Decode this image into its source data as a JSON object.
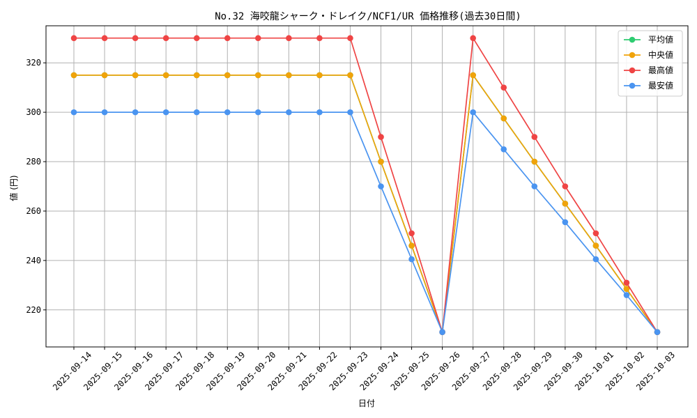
{
  "chart_data": {
    "type": "line",
    "title": "No.32 海咬龍シャーク・ドレイク/NCF1/UR 価格推移(過去30日間)",
    "xlabel": "日付",
    "ylabel": "値 (円)",
    "ylim": [
      205,
      335
    ],
    "yticks": [
      220,
      240,
      260,
      280,
      300,
      320
    ],
    "grid": true,
    "legend_position": "top-right",
    "categories": [
      "2025-09-14",
      "2025-09-15",
      "2025-09-16",
      "2025-09-17",
      "2025-09-18",
      "2025-09-19",
      "2025-09-20",
      "2025-09-21",
      "2025-09-22",
      "2025-09-23",
      "2025-09-24",
      "2025-09-25",
      "2025-09-26",
      "2025-09-27",
      "2025-09-28",
      "2025-09-29",
      "2025-09-30",
      "2025-10-01",
      "2025-10-02",
      "2025-10-03"
    ],
    "series": [
      {
        "name": "平均値",
        "color": "#2ecc71",
        "values": [
          315,
          315,
          315,
          315,
          315,
          315,
          315,
          315,
          315,
          315,
          280,
          246,
          211,
          315,
          297.5,
          280,
          263,
          246,
          228.5,
          211
        ]
      },
      {
        "name": "中央値",
        "color": "#f0a30a",
        "values": [
          315,
          315,
          315,
          315,
          315,
          315,
          315,
          315,
          315,
          315,
          280,
          246,
          211,
          315,
          297.5,
          280,
          263,
          246,
          228.5,
          211
        ]
      },
      {
        "name": "最高値",
        "color": "#ef4444",
        "values": [
          330,
          330,
          330,
          330,
          330,
          330,
          330,
          330,
          330,
          330,
          290,
          251,
          211,
          330,
          310,
          290,
          270,
          251,
          231,
          211
        ]
      },
      {
        "name": "最安値",
        "color": "#4a94f0",
        "values": [
          300,
          300,
          300,
          300,
          300,
          300,
          300,
          300,
          300,
          300,
          270,
          240.5,
          211,
          300,
          285,
          270,
          255.5,
          240.5,
          226,
          211
        ]
      }
    ]
  }
}
